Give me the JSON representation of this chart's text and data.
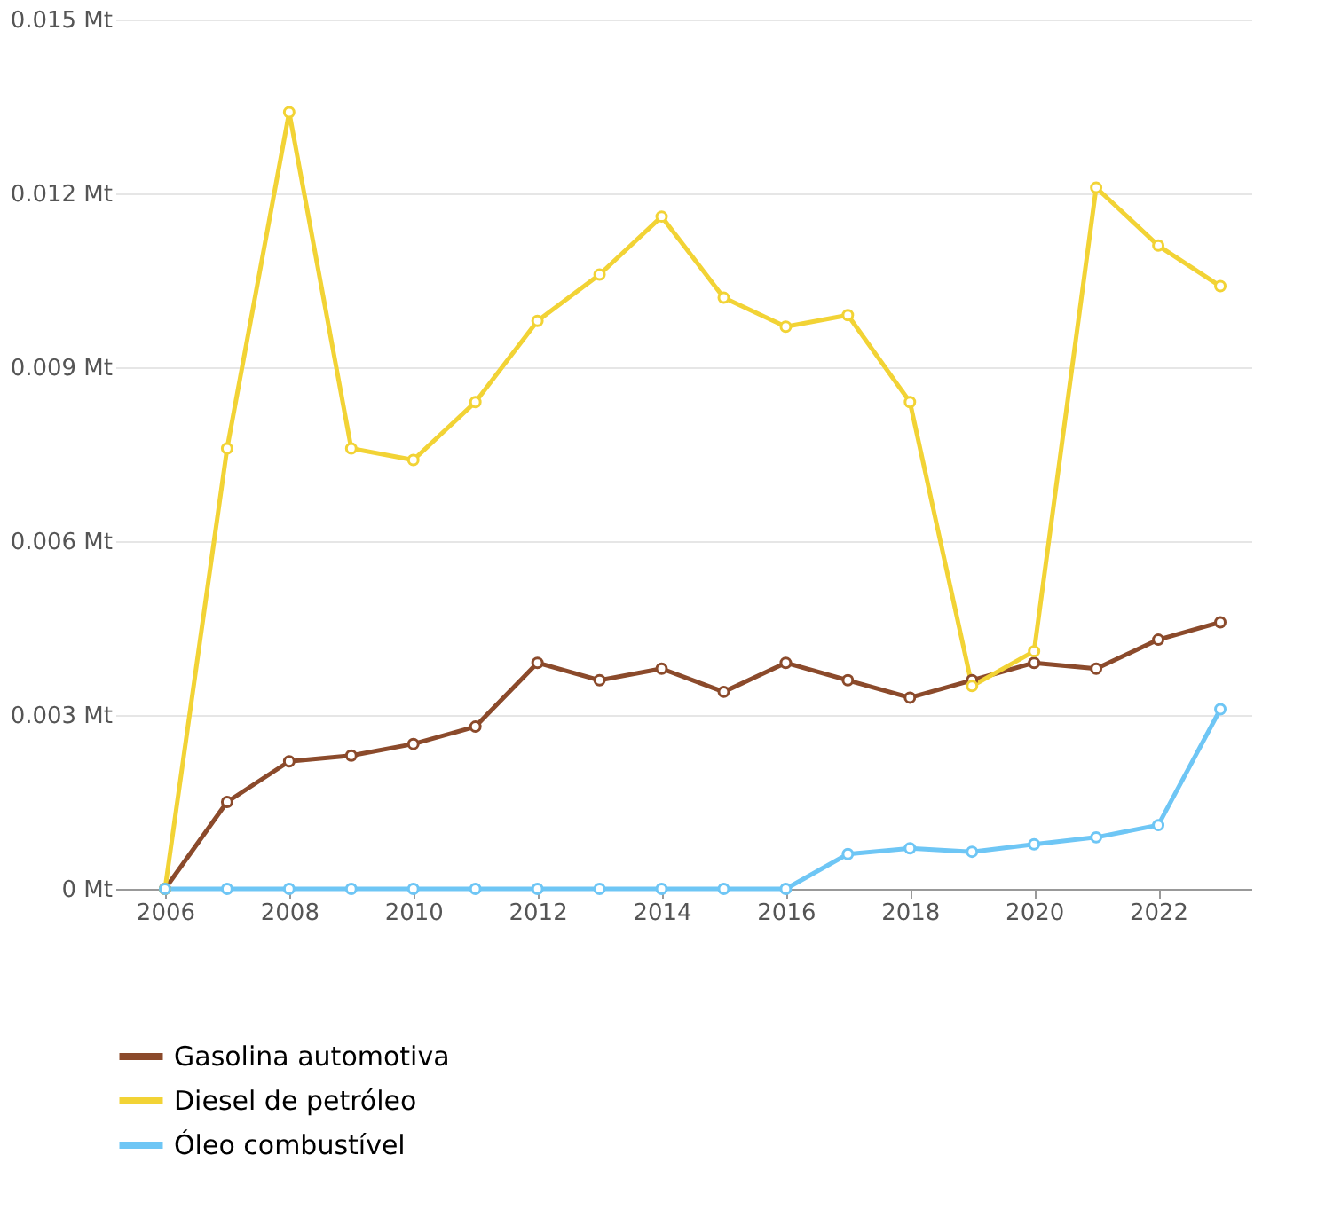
{
  "chart_data": {
    "type": "line",
    "x": [
      2006,
      2007,
      2008,
      2009,
      2010,
      2011,
      2012,
      2013,
      2014,
      2015,
      2016,
      2017,
      2018,
      2019,
      2020,
      2021,
      2022,
      2023
    ],
    "series": [
      {
        "name": "Gasolina automotiva",
        "color": "#8b4a2b",
        "values": [
          0,
          0.0015,
          0.0022,
          0.0023,
          0.0025,
          0.0028,
          0.0039,
          0.0036,
          0.0038,
          0.0034,
          0.0039,
          0.0036,
          0.0033,
          0.0036,
          0.0039,
          0.0038,
          0.0043,
          0.0046
        ]
      },
      {
        "name": "Diesel de petróleo",
        "color": "#f2d335",
        "values": [
          0,
          0.0076,
          0.0134,
          0.0076,
          0.0074,
          0.0084,
          0.0098,
          0.0106,
          0.0116,
          0.0102,
          0.0097,
          0.0099,
          0.0084,
          0.0035,
          0.0041,
          0.0121,
          0.0111,
          0.0104
        ]
      },
      {
        "name": "Óleo combustível",
        "color": "#6ec6f5",
        "values": [
          0,
          0,
          0,
          0,
          0,
          0,
          0,
          0,
          0,
          0,
          0,
          0.0006,
          0.0007,
          0.00064,
          0.00077,
          0.00089,
          0.0011,
          0.0031
        ]
      }
    ],
    "xlim": [
      2005.2,
      2023.5
    ],
    "xticks": [
      2006,
      2008,
      2010,
      2012,
      2014,
      2016,
      2018,
      2020,
      2022
    ],
    "ylim": [
      0,
      0.015
    ],
    "yticks": [
      {
        "value": 0,
        "label": "0 Mt"
      },
      {
        "value": 0.003,
        "label": "0.003 Mt"
      },
      {
        "value": 0.006,
        "label": "0.006 Mt"
      },
      {
        "value": 0.009,
        "label": "0.009 Mt"
      },
      {
        "value": 0.012,
        "label": "0.012 Mt"
      },
      {
        "value": 0.015,
        "label": "0.015 Mt"
      }
    ],
    "grid": "y",
    "legend": "bottom left",
    "marker": "circle",
    "line_style": "solid"
  }
}
